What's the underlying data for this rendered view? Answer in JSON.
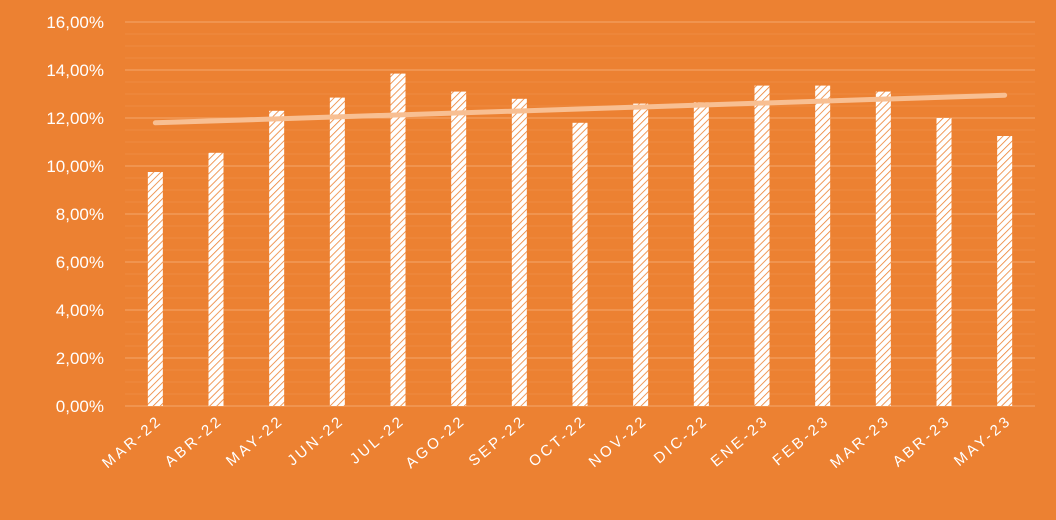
{
  "colors": {
    "background": "#EC8132",
    "bar_fill": "#ffffff",
    "bar_hatch": "#EC8132",
    "trendline": "#F8BF92",
    "gridline": "#F3A66C",
    "text": "#ffffff"
  },
  "chart_data": {
    "type": "bar",
    "title": "",
    "xlabel": "",
    "ylabel": "",
    "ylim": [
      0,
      16
    ],
    "y_ticks": [
      "0,00%",
      "2,00%",
      "4,00%",
      "6,00%",
      "8,00%",
      "10,00%",
      "12,00%",
      "14,00%",
      "16,00%"
    ],
    "categories": [
      "MAR-22",
      "ABR-22",
      "MAY-22",
      "JUN-22",
      "JUL-22",
      "AGO-22",
      "SEP-22",
      "OCT-22",
      "NOV-22",
      "DIC-22",
      "ENE-23",
      "FEB-23",
      "MAR-23",
      "ABR-23",
      "MAY-23"
    ],
    "series": [
      {
        "values": [
          9.75,
          10.55,
          12.3,
          12.85,
          13.85,
          13.1,
          12.8,
          11.8,
          12.6,
          12.65,
          13.35,
          13.35,
          13.1,
          12.0,
          11.25
        ]
      }
    ],
    "trendline": {
      "type": "linear",
      "start": 11.8,
      "end": 12.95
    },
    "grid": true,
    "legend": "none"
  }
}
